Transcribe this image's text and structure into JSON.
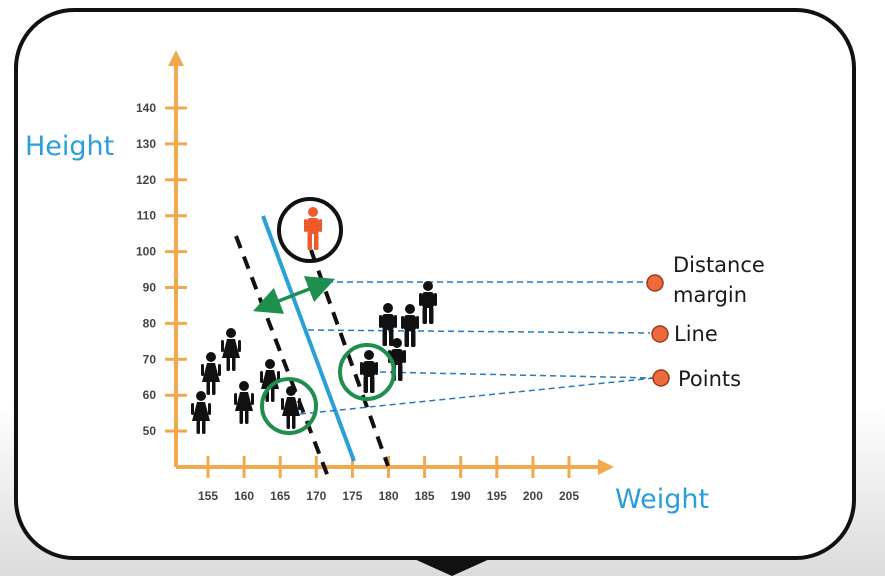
{
  "axes": {
    "y_title": "Height",
    "x_title": "Weight",
    "y_ticks": [
      "140",
      "130",
      "120",
      "110",
      "100",
      "90",
      "80",
      "70",
      "60",
      "50"
    ],
    "x_ticks": [
      "155",
      "160",
      "165",
      "170",
      "175",
      "180",
      "185",
      "190",
      "195",
      "200",
      "205"
    ]
  },
  "legend": {
    "distance_line1": "Distance",
    "distance_line2": "margin",
    "line": "Line",
    "points": "Points"
  },
  "colors": {
    "axis": "#f2a94e",
    "hyperplane": "#2a9fd8",
    "margin_arrow": "#1f8f4e",
    "highlight_circle": "#1f8f4e",
    "legend_dot": "#ef6a3a",
    "outlier": "#ef5a2a",
    "leader_line": "#2a7ab8"
  }
}
